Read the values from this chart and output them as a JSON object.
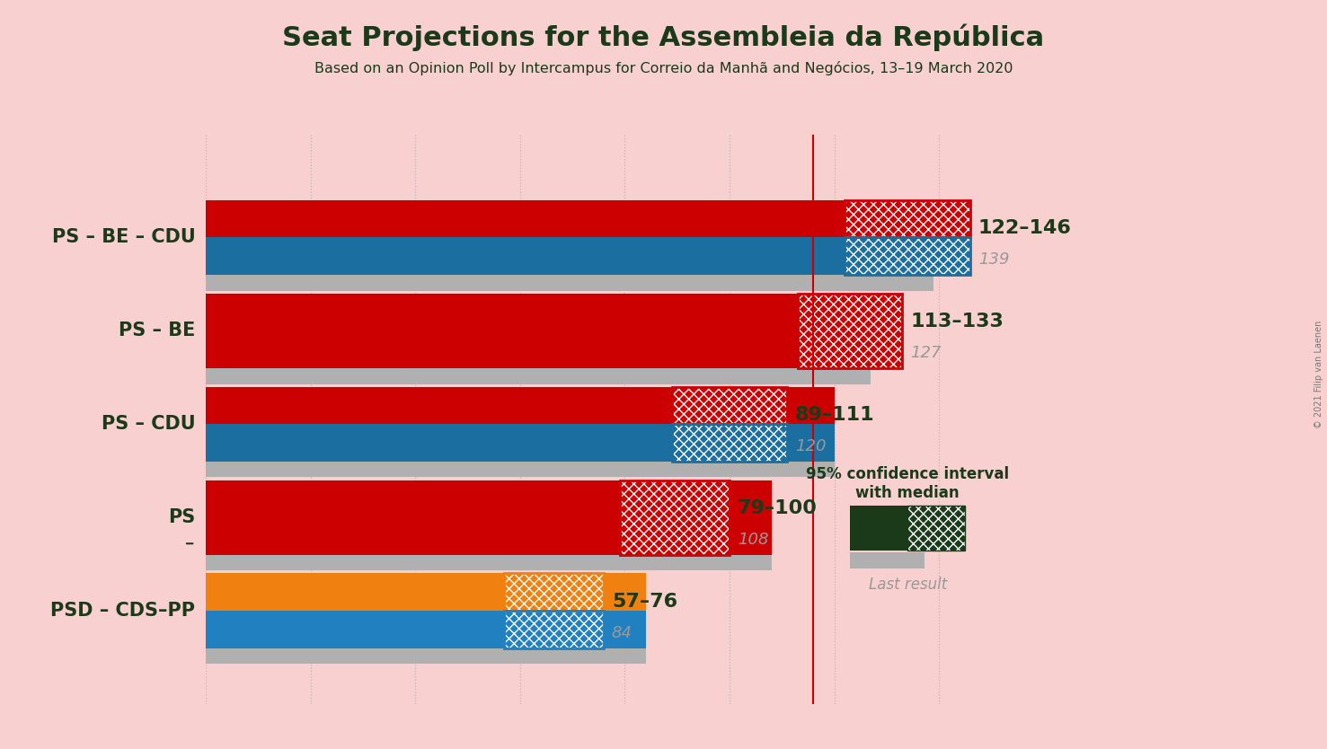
{
  "title": "Seat Projections for the Assembleia da República",
  "subtitle": "Based on an Opinion Poll by Intercampus for Correio da Manhã and Negócios, 13–19 March 2020",
  "copyright": "© 2021 Filip van Laenen",
  "bg": "#f9d0d0",
  "categories": [
    "PS – BE – CDU",
    "PS – BE",
    "PS – CDU",
    "PS",
    "PSD – CDS–PP"
  ],
  "underline": [
    false,
    false,
    false,
    true,
    false
  ],
  "low": [
    122,
    113,
    89,
    79,
    57
  ],
  "high": [
    146,
    133,
    111,
    100,
    76
  ],
  "median": [
    139,
    127,
    120,
    108,
    84
  ],
  "last": [
    139,
    127,
    120,
    108,
    84
  ],
  "range_labels": [
    "122–146",
    "113–133",
    "89–111",
    "79–100",
    "57–76"
  ],
  "median_labels": [
    "139",
    "127",
    "120",
    "108",
    "84"
  ],
  "colors1": [
    "#cc0000",
    "#cc0000",
    "#cc0000",
    "#cc0000",
    "#f08010"
  ],
  "colors2": [
    "#1a6ea0",
    null,
    "#1a6ea0",
    null,
    "#2080c0"
  ],
  "majority": 116,
  "xlim_max": 152,
  "dark_color": "#1a3a1a",
  "gray_color": "#999999",
  "grid_vals": [
    0,
    20,
    40,
    60,
    80,
    100,
    120,
    140
  ]
}
